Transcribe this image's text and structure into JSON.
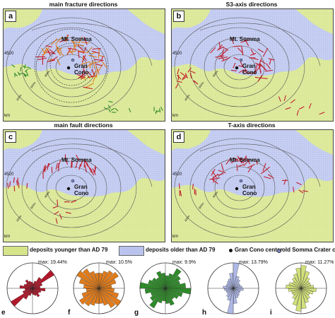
{
  "panels": [
    {
      "letter": "a",
      "title": "main fracture directions",
      "somma": "Mt. Somma",
      "cono": "Gran\nCono",
      "y_tick": "4520",
      "x_unit": "km"
    },
    {
      "letter": "b",
      "title": "S3-axis directions",
      "somma": "Mt. Somma",
      "cono": "Gran\nCono",
      "y_tick": "4520",
      "x_unit": "km"
    },
    {
      "letter": "c",
      "title": "main fault directions",
      "somma": "Mt. Somma",
      "cono": "Gran\nCono",
      "y_tick": "4520",
      "x_unit": "km"
    },
    {
      "letter": "d",
      "title": "T-axis directions",
      "somma": "Mt. Somma",
      "cono": "Gran\nCono",
      "y_tick": "4520",
      "x_unit": "km"
    }
  ],
  "contours": [
    "800m",
    "600m",
    "400m"
  ],
  "legend": {
    "younger": "deposits younger than AD 79",
    "older": "deposits older than AD 79",
    "gran_cono": "Gran Cono center",
    "somma_crater": "old Somma Crater center"
  },
  "roses": [
    {
      "letter": "e",
      "max": "max: 19.44%",
      "color": "#b0192b"
    },
    {
      "letter": "f",
      "max": "max: 10.5%",
      "color": "#e07b1a"
    },
    {
      "letter": "g",
      "max": "max: 9.9%",
      "color": "#2f8a2a"
    },
    {
      "letter": "h",
      "max": "max: 13.79%",
      "color": "#aeb8e6"
    },
    {
      "letter": "i",
      "max": "max: 11.27%",
      "color": "#d2e07a"
    }
  ],
  "colors": {
    "younger": "#d6e58a",
    "older": "#b9c3ee",
    "fracture_red": "#c01d2a",
    "fracture_orange": "#e07b1a",
    "fracture_green": "#2f8a2a"
  }
}
